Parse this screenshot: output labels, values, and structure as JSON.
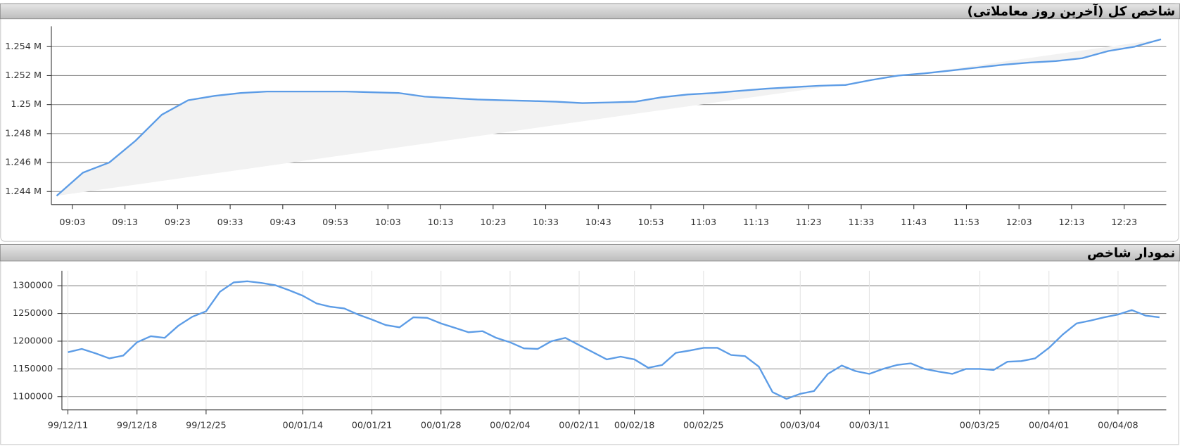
{
  "chart_data": [
    {
      "type": "line",
      "title": "شاخص کل (آخرین روز معاملاتی)",
      "color": "#5c9ce6",
      "area_fill": "#f2f2f2",
      "grid": true,
      "x": [
        540,
        545,
        550,
        555,
        560,
        565,
        570,
        575,
        580,
        585,
        590,
        595,
        600,
        605,
        610,
        615,
        620,
        625,
        630,
        635,
        640,
        645,
        650,
        655,
        660,
        665,
        670,
        675,
        680,
        685,
        690,
        695,
        700,
        705,
        710,
        715,
        720,
        725,
        730,
        735,
        740,
        745,
        750
      ],
      "values": [
        1243700,
        1245300,
        1246000,
        1247500,
        1249300,
        1250300,
        1250600,
        1250800,
        1250900,
        1250900,
        1250900,
        1250900,
        1250850,
        1250800,
        1250550,
        1250450,
        1250350,
        1250300,
        1250250,
        1250200,
        1250100,
        1250150,
        1250200,
        1250500,
        1250700,
        1250800,
        1250950,
        1251100,
        1251200,
        1251300,
        1251350,
        1251700,
        1252000,
        1252150,
        1252350,
        1252550,
        1252750,
        1252900,
        1253000,
        1253200,
        1253700,
        1254000,
        1254500
      ],
      "xlim": [
        539,
        751
      ],
      "xticks": [
        {
          "value": 543,
          "label": "09:03"
        },
        {
          "value": 553,
          "label": "09:13"
        },
        {
          "value": 563,
          "label": "09:23"
        },
        {
          "value": 573,
          "label": "09:33"
        },
        {
          "value": 583,
          "label": "09:43"
        },
        {
          "value": 593,
          "label": "09:53"
        },
        {
          "value": 603,
          "label": "10:03"
        },
        {
          "value": 613,
          "label": "10:13"
        },
        {
          "value": 623,
          "label": "10:23"
        },
        {
          "value": 633,
          "label": "10:33"
        },
        {
          "value": 643,
          "label": "10:43"
        },
        {
          "value": 653,
          "label": "10:53"
        },
        {
          "value": 663,
          "label": "11:03"
        },
        {
          "value": 673,
          "label": "11:13"
        },
        {
          "value": 683,
          "label": "11:23"
        },
        {
          "value": 693,
          "label": "11:33"
        },
        {
          "value": 703,
          "label": "11:43"
        },
        {
          "value": 713,
          "label": "11:53"
        },
        {
          "value": 723,
          "label": "12:03"
        },
        {
          "value": 733,
          "label": "12:13"
        },
        {
          "value": 743,
          "label": "12:23"
        }
      ],
      "ylim": [
        1243100,
        1255400
      ],
      "yticks": [
        {
          "value": 1244000,
          "label": "1.244 M"
        },
        {
          "value": 1246000,
          "label": "1.246 M"
        },
        {
          "value": 1248000,
          "label": "1.248 M"
        },
        {
          "value": 1250000,
          "label": "1.25 M"
        },
        {
          "value": 1252000,
          "label": "1.252 M"
        },
        {
          "value": 1254000,
          "label": "1.254 M"
        }
      ]
    },
    {
      "type": "line",
      "title": "نمودار شاخص",
      "color": "#5c9ce6",
      "grid": true,
      "categories": [
        "99/12/11",
        null,
        null,
        null,
        null,
        "99/12/18",
        null,
        null,
        null,
        null,
        "99/12/25",
        null,
        null,
        null,
        null,
        null,
        null,
        "00/01/14",
        null,
        null,
        null,
        null,
        "00/01/21",
        null,
        null,
        null,
        null,
        "00/01/28",
        null,
        null,
        null,
        null,
        "00/02/04",
        null,
        null,
        null,
        null,
        "00/02/11",
        null,
        null,
        null,
        "00/02/18",
        null,
        null,
        null,
        null,
        "00/02/25",
        null,
        null,
        null,
        null,
        null,
        null,
        "00/03/04",
        null,
        null,
        null,
        null,
        "00/03/11",
        null,
        null,
        null,
        null,
        null,
        null,
        null,
        "00/03/25",
        null,
        null,
        null,
        null,
        "00/04/01",
        null,
        null,
        null,
        null,
        "00/04/08",
        null,
        null,
        null
      ],
      "values": [
        1180000,
        1186000,
        1178000,
        1169000,
        1174000,
        1198000,
        1209000,
        1206000,
        1228000,
        1244000,
        1254000,
        1289000,
        1306000,
        1308000,
        1305000,
        1301000,
        1292000,
        1282000,
        1268000,
        1262000,
        1259000,
        1248000,
        1239000,
        1229000,
        1225000,
        1243000,
        1242000,
        1232000,
        1224000,
        1216000,
        1218000,
        1206000,
        1198000,
        1187000,
        1186000,
        1200000,
        1206000,
        1193000,
        1180000,
        1167000,
        1172000,
        1167000,
        1152000,
        1157000,
        1179000,
        1183000,
        1188000,
        1188000,
        1175000,
        1173000,
        1154000,
        1108000,
        1096000,
        1105000,
        1110000,
        1141000,
        1156000,
        1146000,
        1141000,
        1150000,
        1157000,
        1160000,
        1150000,
        1145000,
        1141000,
        1150000,
        1150000,
        1148000,
        1163000,
        1164000,
        1169000,
        1188000,
        1212000,
        1232000,
        1237000,
        1243000,
        1248000,
        1256000,
        1246000,
        1243000
      ],
      "ylim": [
        1076000,
        1327000
      ],
      "yticks": [
        1100000,
        1150000,
        1200000,
        1250000,
        1300000
      ]
    }
  ]
}
